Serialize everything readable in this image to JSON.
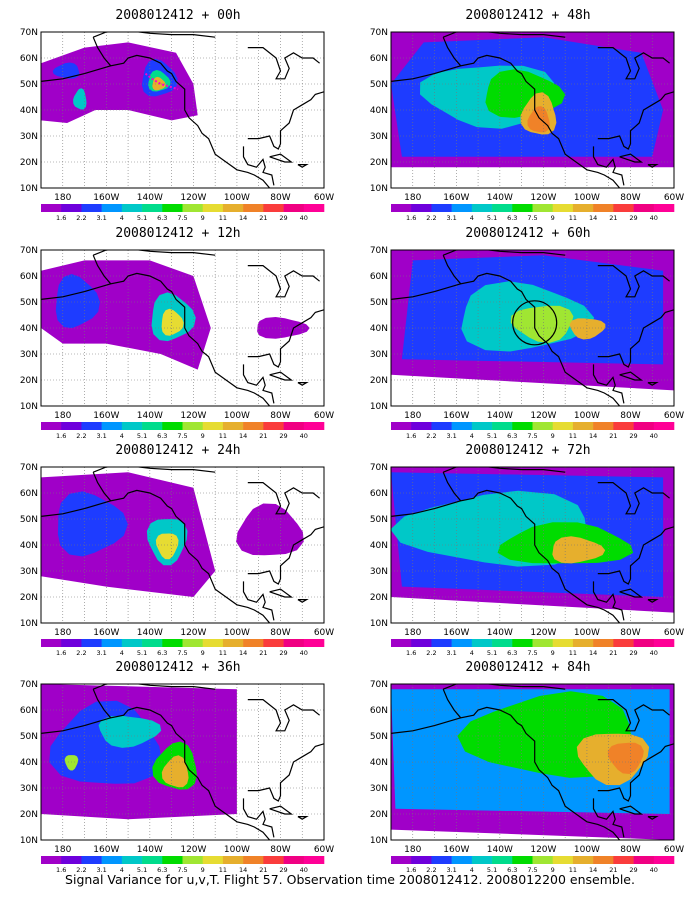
{
  "panels": [
    {
      "title": "2008012412 + 00h"
    },
    {
      "title": "2008012412 + 48h"
    },
    {
      "title": "2008012412 + 12h"
    },
    {
      "title": "2008012412 + 60h"
    },
    {
      "title": "2008012412 + 24h"
    },
    {
      "title": "2008012412 + 72h"
    },
    {
      "title": "2008012412 + 36h"
    },
    {
      "title": "2008012412 + 84h"
    }
  ],
  "map": {
    "lat_labels": [
      "70N",
      "60N",
      "50N",
      "40N",
      "30N",
      "20N",
      "10N"
    ],
    "lon_labels": [
      "180",
      "160W",
      "140W",
      "120W",
      "100W",
      "80W",
      "60W"
    ]
  },
  "colorbar": {
    "levels": [
      "1.6",
      "2.2",
      "3.1",
      "4",
      "5.1",
      "6.3",
      "7.5",
      "9",
      "11",
      "14",
      "21",
      "29",
      "40"
    ],
    "colors": [
      "#a000c8",
      "#6e00dc",
      "#1e3cff",
      "#0096ff",
      "#00c8c8",
      "#00dc8c",
      "#00dc00",
      "#a0e632",
      "#e6dc32",
      "#e6af2d",
      "#f08228",
      "#fa3c3c",
      "#f00082",
      "#ff0096"
    ]
  },
  "caption": "Signal Variance for u,v,T. Flight 57. Observation time 2008012412. 2008012200 ensemble."
}
